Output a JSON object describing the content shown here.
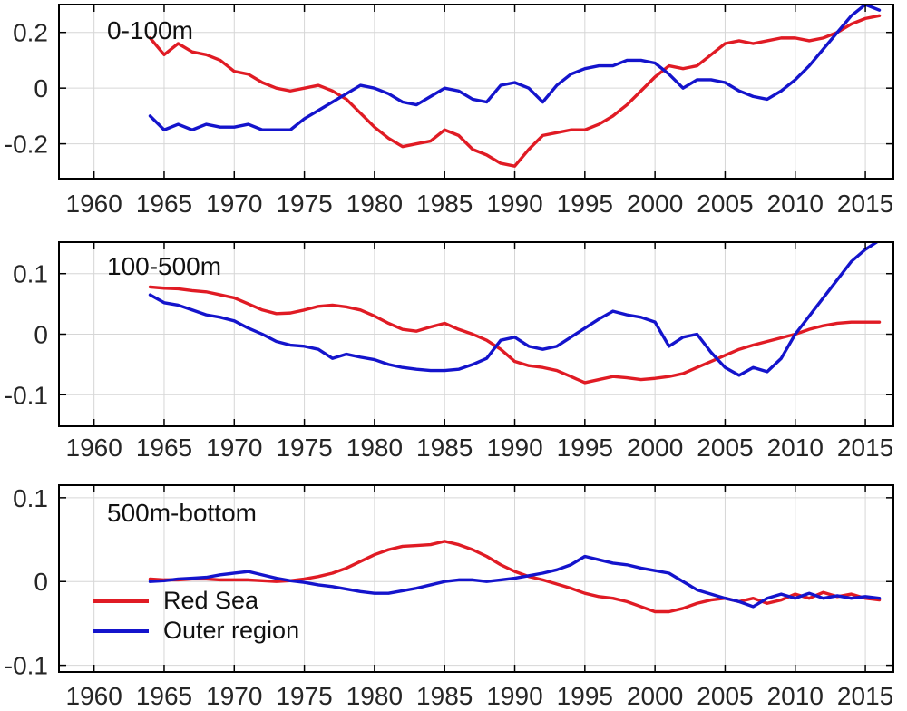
{
  "figure": {
    "bg": "#ffffff",
    "text_color": "#262626",
    "grid_color": "#d6d6d6",
    "axis_color": "#000000"
  },
  "legend": {
    "items": [
      {
        "label": "Red Sea",
        "color": "#e01b24"
      },
      {
        "label": "Outer region",
        "color": "#1414cc"
      }
    ]
  },
  "chart_data": [
    {
      "type": "line",
      "title": "0-100m",
      "xlabel": "",
      "ylabel": "",
      "x_start": 1964,
      "x_step": 1,
      "xlim": [
        1957.5,
        2017
      ],
      "ylim": [
        -0.325,
        0.3
      ],
      "xticks": [
        1960,
        1965,
        1970,
        1975,
        1980,
        1985,
        1990,
        1995,
        2000,
        2005,
        2010,
        2015
      ],
      "yticks": [
        -0.2,
        0,
        0.2
      ],
      "grid": true,
      "series": [
        {
          "name": "Red Sea",
          "color": "#e01b24",
          "values": [
            0.18,
            0.12,
            0.16,
            0.13,
            0.12,
            0.1,
            0.06,
            0.05,
            0.02,
            0.0,
            -0.01,
            0.0,
            0.01,
            -0.01,
            -0.04,
            -0.09,
            -0.14,
            -0.18,
            -0.21,
            -0.2,
            -0.19,
            -0.15,
            -0.17,
            -0.22,
            -0.24,
            -0.27,
            -0.28,
            -0.22,
            -0.17,
            -0.16,
            -0.15,
            -0.15,
            -0.13,
            -0.1,
            -0.06,
            -0.01,
            0.04,
            0.08,
            0.07,
            0.08,
            0.12,
            0.16,
            0.17,
            0.16,
            0.17,
            0.18,
            0.18,
            0.17,
            0.18,
            0.2,
            0.23,
            0.25,
            0.26
          ]
        },
        {
          "name": "Outer region",
          "color": "#1414cc",
          "values": [
            -0.1,
            -0.15,
            -0.13,
            -0.15,
            -0.13,
            -0.14,
            -0.14,
            -0.13,
            -0.15,
            -0.15,
            -0.15,
            -0.11,
            -0.08,
            -0.05,
            -0.02,
            0.01,
            0.0,
            -0.02,
            -0.05,
            -0.06,
            -0.03,
            0.0,
            -0.01,
            -0.04,
            -0.05,
            0.01,
            0.02,
            0.0,
            -0.05,
            0.01,
            0.05,
            0.07,
            0.08,
            0.08,
            0.1,
            0.1,
            0.09,
            0.05,
            0.0,
            0.03,
            0.03,
            0.02,
            -0.01,
            -0.03,
            -0.04,
            -0.01,
            0.03,
            0.08,
            0.14,
            0.2,
            0.26,
            0.3,
            0.28
          ]
        }
      ]
    },
    {
      "type": "line",
      "title": "100-500m",
      "xlabel": "",
      "ylabel": "",
      "x_start": 1964,
      "x_step": 1,
      "xlim": [
        1957.5,
        2017
      ],
      "ylim": [
        -0.152,
        0.152
      ],
      "xticks": [
        1960,
        1965,
        1970,
        1975,
        1980,
        1985,
        1990,
        1995,
        2000,
        2005,
        2010,
        2015
      ],
      "yticks": [
        -0.1,
        0,
        0.1
      ],
      "grid": true,
      "series": [
        {
          "name": "Red Sea",
          "color": "#e01b24",
          "values": [
            0.078,
            0.076,
            0.075,
            0.072,
            0.07,
            0.065,
            0.06,
            0.05,
            0.04,
            0.034,
            0.035,
            0.04,
            0.046,
            0.048,
            0.045,
            0.04,
            0.03,
            0.018,
            0.008,
            0.005,
            0.012,
            0.018,
            0.008,
            0.0,
            -0.01,
            -0.025,
            -0.045,
            -0.052,
            -0.055,
            -0.06,
            -0.07,
            -0.08,
            -0.075,
            -0.07,
            -0.072,
            -0.075,
            -0.073,
            -0.07,
            -0.065,
            -0.055,
            -0.045,
            -0.035,
            -0.025,
            -0.018,
            -0.012,
            -0.006,
            0.0,
            0.008,
            0.014,
            0.018,
            0.02,
            0.02,
            0.02
          ]
        },
        {
          "name": "Outer region",
          "color": "#1414cc",
          "values": [
            0.065,
            0.052,
            0.048,
            0.04,
            0.032,
            0.028,
            0.022,
            0.01,
            0.0,
            -0.012,
            -0.018,
            -0.02,
            -0.025,
            -0.04,
            -0.033,
            -0.038,
            -0.042,
            -0.05,
            -0.055,
            -0.058,
            -0.06,
            -0.06,
            -0.058,
            -0.05,
            -0.04,
            -0.01,
            -0.005,
            -0.02,
            -0.025,
            -0.02,
            -0.005,
            0.01,
            0.025,
            0.038,
            0.032,
            0.028,
            0.02,
            -0.02,
            -0.005,
            0.0,
            -0.03,
            -0.055,
            -0.068,
            -0.055,
            -0.062,
            -0.04,
            0.0,
            0.03,
            0.06,
            0.09,
            0.12,
            0.14,
            0.155
          ]
        }
      ]
    },
    {
      "type": "line",
      "title": "500m-bottom",
      "xlabel": "",
      "ylabel": "",
      "x_start": 1964,
      "x_step": 1,
      "xlim": [
        1957.5,
        2017
      ],
      "ylim": [
        -0.108,
        0.115
      ],
      "xticks": [
        1960,
        1965,
        1970,
        1975,
        1980,
        1985,
        1990,
        1995,
        2000,
        2005,
        2010,
        2015
      ],
      "yticks": [
        -0.1,
        0,
        0.1
      ],
      "grid": true,
      "series": [
        {
          "name": "Red Sea",
          "color": "#e01b24",
          "values": [
            0.003,
            0.002,
            0.002,
            0.003,
            0.003,
            0.002,
            0.002,
            0.002,
            0.001,
            0.0,
            0.001,
            0.003,
            0.006,
            0.01,
            0.016,
            0.024,
            0.032,
            0.038,
            0.042,
            0.043,
            0.044,
            0.048,
            0.044,
            0.038,
            0.03,
            0.02,
            0.012,
            0.006,
            0.002,
            -0.003,
            -0.008,
            -0.014,
            -0.018,
            -0.02,
            -0.024,
            -0.03,
            -0.036,
            -0.036,
            -0.032,
            -0.026,
            -0.022,
            -0.02,
            -0.024,
            -0.02,
            -0.026,
            -0.022,
            -0.015,
            -0.02,
            -0.013,
            -0.018,
            -0.015,
            -0.02,
            -0.022
          ]
        },
        {
          "name": "Outer region",
          "color": "#1414cc",
          "values": [
            0.0,
            0.001,
            0.003,
            0.004,
            0.005,
            0.008,
            0.01,
            0.012,
            0.008,
            0.004,
            0.001,
            -0.001,
            -0.004,
            -0.006,
            -0.009,
            -0.012,
            -0.014,
            -0.014,
            -0.011,
            -0.008,
            -0.004,
            0.0,
            0.002,
            0.002,
            0.0,
            0.002,
            0.004,
            0.007,
            0.01,
            0.014,
            0.02,
            0.03,
            0.026,
            0.022,
            0.02,
            0.016,
            0.013,
            0.01,
            0.0,
            -0.01,
            -0.015,
            -0.02,
            -0.024,
            -0.03,
            -0.02,
            -0.015,
            -0.02,
            -0.014,
            -0.02,
            -0.017,
            -0.02,
            -0.018,
            -0.02
          ]
        }
      ]
    }
  ]
}
